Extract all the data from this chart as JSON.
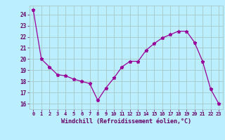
{
  "x": [
    0,
    1,
    2,
    3,
    4,
    5,
    6,
    7,
    8,
    9,
    10,
    11,
    12,
    13,
    14,
    15,
    16,
    17,
    18,
    19,
    20,
    21,
    22,
    23
  ],
  "y": [
    24.4,
    20.0,
    19.3,
    18.6,
    18.5,
    18.2,
    18.0,
    17.8,
    16.3,
    17.4,
    18.3,
    19.3,
    19.8,
    19.8,
    20.8,
    21.4,
    21.9,
    22.2,
    22.5,
    22.5,
    21.5,
    19.8,
    17.3,
    16.0
  ],
  "xlabel": "Windchill (Refroidissement éolien,°C)",
  "ylim": [
    15.5,
    24.8
  ],
  "yticks": [
    16,
    17,
    18,
    19,
    20,
    21,
    22,
    23,
    24
  ],
  "xticks": [
    0,
    1,
    2,
    3,
    4,
    5,
    6,
    7,
    8,
    9,
    10,
    11,
    12,
    13,
    14,
    15,
    16,
    17,
    18,
    19,
    20,
    21,
    22,
    23
  ],
  "line_color": "#990099",
  "marker": "*",
  "bg_color": "#bbeeff",
  "grid_color": "#aacccc",
  "tick_label_color": "#660066",
  "xlabel_color": "#660066"
}
